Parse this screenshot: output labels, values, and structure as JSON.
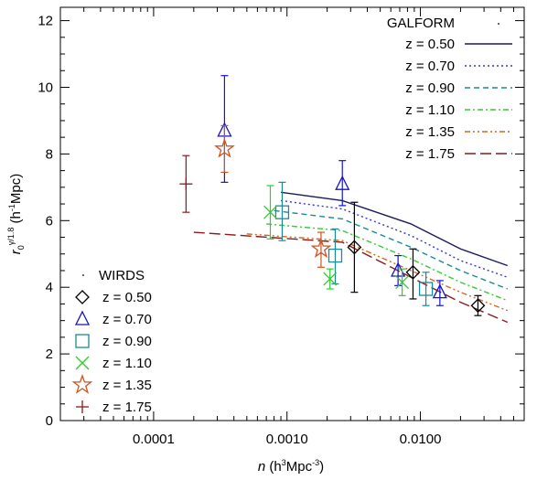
{
  "chart_data": {
    "type": "scatter",
    "xscale": "log",
    "xlim": [
      2e-05,
      0.06
    ],
    "ylim": [
      0,
      12.4
    ],
    "xticks": [
      {
        "value": 0.0001,
        "label": "0.0001"
      },
      {
        "value": 0.001,
        "label": "0.0010"
      },
      {
        "value": 0.01,
        "label": "0.0100"
      }
    ],
    "yticks": [
      0,
      2,
      4,
      6,
      8,
      10,
      12
    ],
    "xlabel": {
      "main": "n",
      "unit_open": " (h",
      "unit_sup": "3",
      "unit_mid": "Mpc",
      "unit_sup2": "-3",
      "unit_close": ")"
    },
    "ylabel": {
      "main": "r",
      "sub": "0",
      "sup": "γ/1.8",
      "unit_open": " (h",
      "unit_sup": "-1",
      "unit_close": "Mpc)"
    },
    "galform_legend_title": "GALFORM",
    "wirds_legend_title": "WIRDS",
    "models": [
      {
        "name": "z = 0.50",
        "color": "#1a1a5e",
        "dash": "",
        "x": [
          0.0009,
          0.0026,
          0.0085,
          0.02,
          0.045
        ],
        "y": [
          6.85,
          6.6,
          5.9,
          5.15,
          4.65
        ]
      },
      {
        "name": "z = 0.70",
        "color": "#3333dd",
        "dash": "2,3",
        "x": [
          0.0009,
          0.0026,
          0.0085,
          0.02,
          0.045
        ],
        "y": [
          6.6,
          6.35,
          5.55,
          4.8,
          4.3
        ]
      },
      {
        "name": "z = 0.90",
        "color": "#1b8a96",
        "dash": "6,4",
        "x": [
          0.0008,
          0.0026,
          0.0085,
          0.02,
          0.045
        ],
        "y": [
          6.3,
          6.05,
          5.2,
          4.5,
          3.95
        ]
      },
      {
        "name": "z = 1.10",
        "color": "#33cc33",
        "dash": "6,3,2,3",
        "x": [
          0.0007,
          0.0026,
          0.0085,
          0.02,
          0.045
        ],
        "y": [
          5.9,
          5.7,
          4.85,
          4.15,
          3.6
        ]
      },
      {
        "name": "z = 1.35",
        "color": "#d2691e",
        "dash": "6,3,2,3,2,3",
        "x": [
          0.0005,
          0.0026,
          0.0085,
          0.02,
          0.045
        ],
        "y": [
          5.6,
          5.4,
          4.5,
          3.85,
          3.3
        ]
      },
      {
        "name": "z = 1.75",
        "color": "#8b1a1a",
        "dash": "12,5",
        "x": [
          0.0002,
          0.0026,
          0.0085,
          0.02,
          0.045
        ],
        "y": [
          5.65,
          5.35,
          4.3,
          3.55,
          2.95
        ]
      }
    ],
    "observations": [
      {
        "name": "z = 0.50",
        "marker": "diamond",
        "color": "#000000",
        "points": [
          {
            "x": 0.0032,
            "y": 5.2,
            "lo": 3.85,
            "hi": 6.55
          },
          {
            "x": 0.0088,
            "y": 4.45,
            "lo": 3.65,
            "hi": 5.15
          },
          {
            "x": 0.027,
            "y": 3.45,
            "lo": 3.15,
            "hi": 3.75
          }
        ]
      },
      {
        "name": "z = 0.70",
        "marker": "triangle",
        "color": "#1515c8",
        "points": [
          {
            "x": 0.00034,
            "y": 8.7,
            "lo": 7.15,
            "hi": 10.35
          },
          {
            "x": 0.0026,
            "y": 7.1,
            "lo": 6.45,
            "hi": 7.8
          },
          {
            "x": 0.0068,
            "y": 4.5,
            "lo": 4.05,
            "hi": 4.95
          },
          {
            "x": 0.014,
            "y": 3.85,
            "lo": 3.45,
            "hi": 4.2
          }
        ]
      },
      {
        "name": "z = 0.90",
        "marker": "square",
        "color": "#1b8a96",
        "points": [
          {
            "x": 0.00092,
            "y": 6.25,
            "lo": 5.4,
            "hi": 7.15
          },
          {
            "x": 0.0023,
            "y": 4.95,
            "lo": 4.1,
            "hi": 5.75
          },
          {
            "x": 0.011,
            "y": 3.95,
            "lo": 3.45,
            "hi": 4.45
          }
        ]
      },
      {
        "name": "z = 1.10",
        "marker": "x",
        "color": "#2fcc2f",
        "points": [
          {
            "x": 0.00075,
            "y": 6.25,
            "lo": 5.45,
            "hi": 7.05
          },
          {
            "x": 0.0021,
            "y": 4.25,
            "lo": 3.95,
            "hi": 4.55
          },
          {
            "x": 0.0073,
            "y": 4.15,
            "lo": 3.75,
            "hi": 4.55
          }
        ]
      },
      {
        "name": "z = 1.35",
        "marker": "star",
        "color": "#d2521e",
        "points": [
          {
            "x": 0.00034,
            "y": 8.15,
            "lo": 7.45,
            "hi": 8.85
          },
          {
            "x": 0.0018,
            "y": 5.15,
            "lo": 4.6,
            "hi": 5.65
          }
        ]
      },
      {
        "name": "z = 1.75",
        "marker": "plus",
        "color": "#8b1a1a",
        "points": [
          {
            "x": 0.000175,
            "y": 7.1,
            "lo": 6.25,
            "hi": 7.95
          }
        ]
      }
    ]
  }
}
